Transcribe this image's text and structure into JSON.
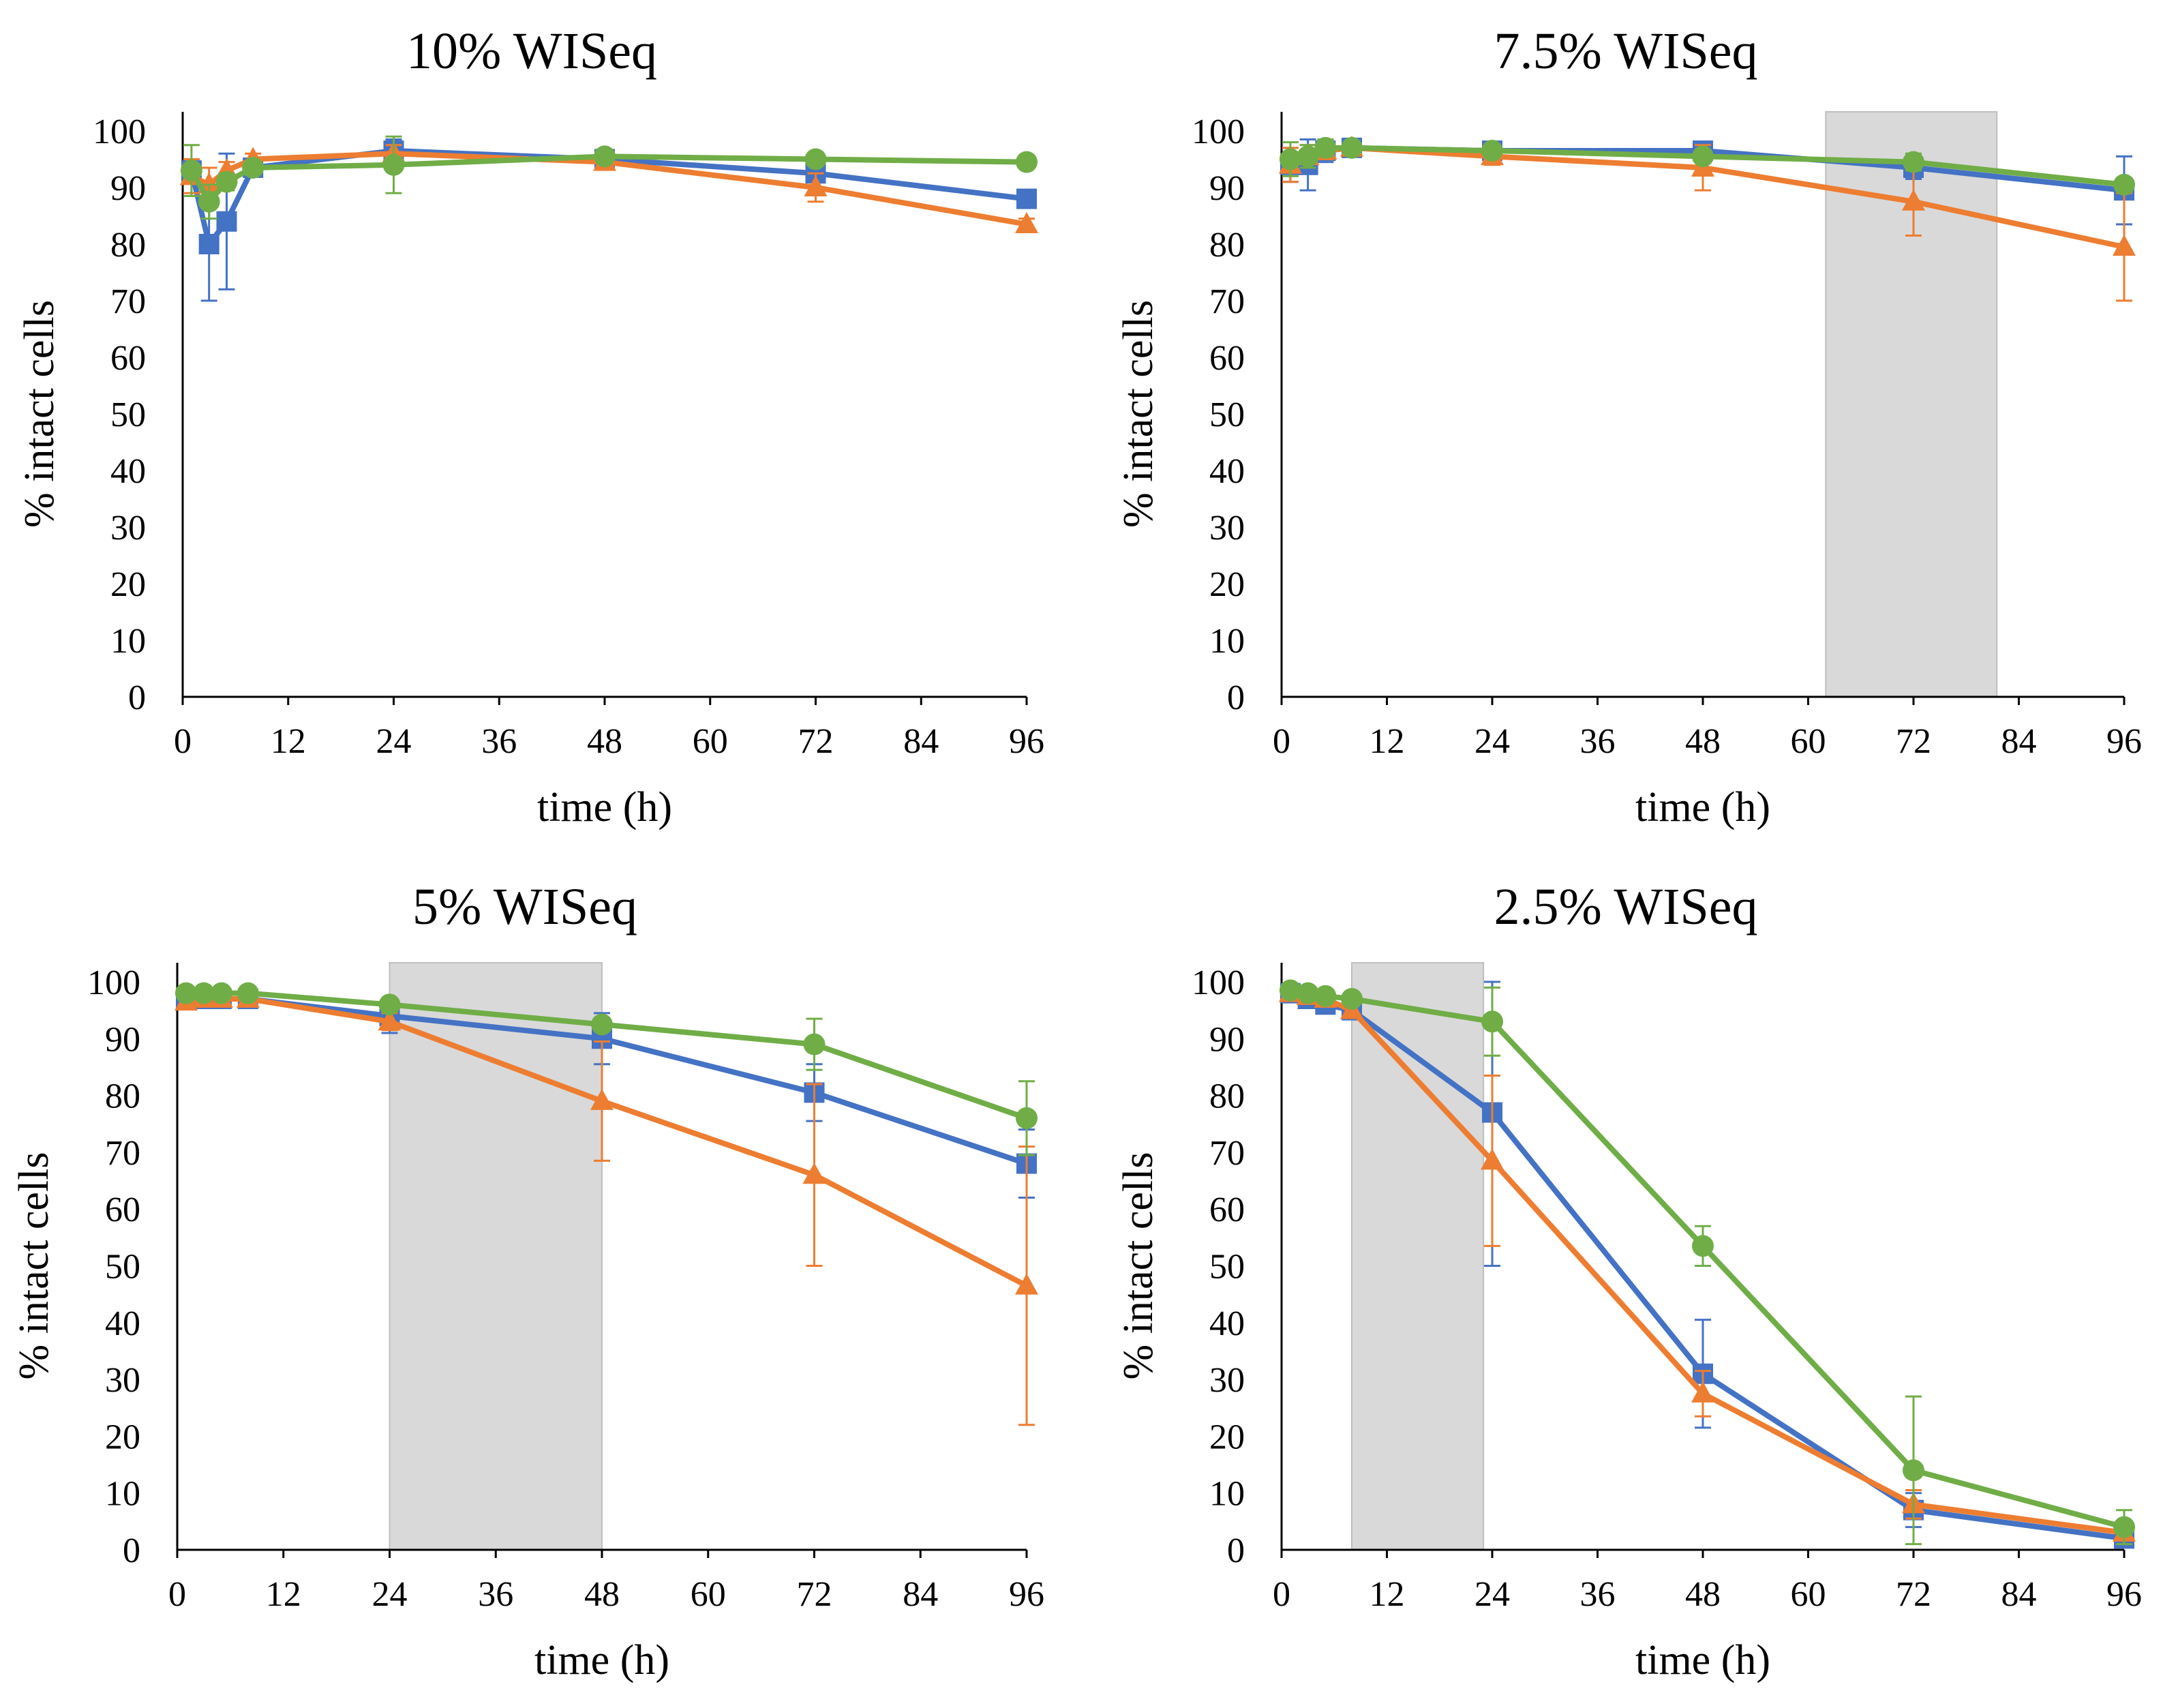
{
  "figure": {
    "description_free": true
  },
  "colors": {
    "blue": "#4472C4",
    "orange": "#ED7D31",
    "green": "#70AD47",
    "shade": "#D9D9D9"
  },
  "chart_data": [
    {
      "type": "line",
      "title": "10% WISeq",
      "xlabel": "time (h)",
      "ylabel": "% intact cells",
      "xlim": [
        0,
        96
      ],
      "ylim": [
        0,
        100
      ],
      "xticks": [
        0,
        12,
        24,
        36,
        48,
        60,
        72,
        84,
        96
      ],
      "yticks": [
        0,
        10,
        20,
        30,
        40,
        50,
        60,
        70,
        80,
        90,
        100
      ],
      "shaded_x": null,
      "series": [
        {
          "name": "series-blue",
          "marker": "square",
          "color": "#4472C4",
          "x": [
            1,
            3,
            5,
            8,
            24,
            48,
            72,
            96
          ],
          "y": [
            93,
            80,
            84,
            93.5,
            96.5,
            95,
            92.5,
            88
          ],
          "err": [
            2,
            10,
            12,
            1.5,
            2,
            1,
            1,
            1
          ]
        },
        {
          "name": "series-orange",
          "marker": "triangle",
          "color": "#ED7D31",
          "x": [
            1,
            3,
            5,
            8,
            24,
            48,
            72,
            96
          ],
          "y": [
            92,
            90.5,
            93,
            95,
            96,
            94.5,
            90,
            83.5
          ],
          "err": [
            3,
            3,
            1.5,
            1,
            1.5,
            1,
            2.5,
            1
          ]
        },
        {
          "name": "series-green",
          "marker": "circle",
          "color": "#70AD47",
          "x": [
            1,
            3,
            5,
            8,
            24,
            48,
            72,
            96
          ],
          "y": [
            93,
            87.5,
            91,
            93.5,
            94,
            95.5,
            95,
            94.5
          ],
          "err": [
            4.5,
            3,
            1.5,
            1,
            5,
            1,
            1,
            1
          ]
        }
      ]
    },
    {
      "type": "line",
      "title": "7.5% WISeq",
      "xlabel": "time (h)",
      "ylabel": "% intact cells",
      "xlim": [
        0,
        96
      ],
      "ylim": [
        0,
        100
      ],
      "xticks": [
        0,
        12,
        24,
        36,
        48,
        60,
        72,
        84,
        96
      ],
      "yticks": [
        0,
        10,
        20,
        30,
        40,
        50,
        60,
        70,
        80,
        90,
        100
      ],
      "shaded_x": [
        62,
        81.5
      ],
      "series": [
        {
          "name": "series-blue",
          "marker": "square",
          "color": "#4472C4",
          "x": [
            1,
            3,
            5,
            8,
            24,
            48,
            72,
            96
          ],
          "y": [
            94,
            94,
            96.5,
            97,
            96.5,
            96.5,
            93.5,
            89.5
          ],
          "err": [
            3,
            4.5,
            2,
            1,
            1,
            1,
            2,
            6
          ]
        },
        {
          "name": "series-orange",
          "marker": "triangle",
          "color": "#ED7D31",
          "x": [
            1,
            3,
            5,
            8,
            24,
            48,
            72,
            96
          ],
          "y": [
            94,
            95.5,
            96.5,
            97,
            95.5,
            93.5,
            87.5,
            79.5
          ],
          "err": [
            3,
            2,
            1.5,
            1,
            1.5,
            4,
            6,
            9.5
          ]
        },
        {
          "name": "series-green",
          "marker": "circle",
          "color": "#70AD47",
          "x": [
            1,
            3,
            5,
            8,
            24,
            48,
            72,
            96
          ],
          "y": [
            95,
            95.5,
            97,
            97,
            96.5,
            95.5,
            94.5,
            90.5
          ],
          "err": [
            3,
            2,
            1.5,
            1,
            1,
            1,
            1.5,
            1
          ]
        }
      ]
    },
    {
      "type": "line",
      "title": "5% WISeq",
      "xlabel": "time (h)",
      "ylabel": "% intact cells",
      "xlim": [
        0,
        96
      ],
      "ylim": [
        0,
        100
      ],
      "xticks": [
        0,
        12,
        24,
        36,
        48,
        60,
        72,
        84,
        96
      ],
      "yticks": [
        0,
        10,
        20,
        30,
        40,
        50,
        60,
        70,
        80,
        90,
        100
      ],
      "shaded_x": [
        24,
        48
      ],
      "series": [
        {
          "name": "series-blue",
          "marker": "square",
          "color": "#4472C4",
          "x": [
            1,
            3,
            5,
            8,
            24,
            48,
            72,
            96
          ],
          "y": [
            97,
            97,
            97,
            97,
            94,
            90,
            80.5,
            68
          ],
          "err": [
            1,
            1,
            1,
            1,
            3,
            4.5,
            5,
            6
          ]
        },
        {
          "name": "series-orange",
          "marker": "triangle",
          "color": "#ED7D31",
          "x": [
            1,
            3,
            5,
            8,
            24,
            48,
            72,
            96
          ],
          "y": [
            96.5,
            97,
            97,
            97,
            93,
            79,
            66,
            46.5
          ],
          "err": [
            1,
            1,
            1,
            1,
            1.5,
            10.5,
            16,
            24.5
          ]
        },
        {
          "name": "series-green",
          "marker": "circle",
          "color": "#70AD47",
          "x": [
            1,
            3,
            5,
            8,
            24,
            48,
            72,
            96
          ],
          "y": [
            98,
            98,
            98,
            98,
            96,
            92.5,
            89,
            76
          ],
          "err": [
            1,
            1,
            1,
            1,
            1,
            1,
            4.5,
            6.5
          ]
        }
      ]
    },
    {
      "type": "line",
      "title": "2.5% WISeq",
      "xlabel": "time (h)",
      "ylabel": "% intact cells",
      "xlim": [
        0,
        96
      ],
      "ylim": [
        0,
        100
      ],
      "xticks": [
        0,
        12,
        24,
        36,
        48,
        60,
        72,
        84,
        96
      ],
      "yticks": [
        0,
        10,
        20,
        30,
        40,
        50,
        60,
        70,
        80,
        90,
        100
      ],
      "shaded_x": [
        8,
        23
      ],
      "series": [
        {
          "name": "series-blue",
          "marker": "square",
          "color": "#4472C4",
          "x": [
            1,
            3,
            5,
            8,
            24,
            48,
            72,
            96
          ],
          "y": [
            98,
            97,
            96,
            95,
            77,
            31,
            7,
            2
          ],
          "err": [
            1,
            1,
            1,
            1,
            27,
            9.5,
            3,
            1
          ]
        },
        {
          "name": "series-orange",
          "marker": "triangle",
          "color": "#ED7D31",
          "x": [
            1,
            3,
            5,
            8,
            24,
            48,
            72,
            96
          ],
          "y": [
            98,
            97.5,
            97,
            95,
            68.5,
            27.5,
            8,
            3
          ],
          "err": [
            1,
            1,
            1,
            1,
            15,
            4,
            2.5,
            1
          ]
        },
        {
          "name": "series-green",
          "marker": "circle",
          "color": "#70AD47",
          "x": [
            1,
            3,
            5,
            8,
            24,
            48,
            72,
            96
          ],
          "y": [
            98.5,
            98,
            97.5,
            97,
            93,
            53.5,
            14,
            4
          ],
          "err": [
            1,
            1,
            1,
            1,
            6,
            3.5,
            13,
            3
          ]
        }
      ]
    }
  ]
}
